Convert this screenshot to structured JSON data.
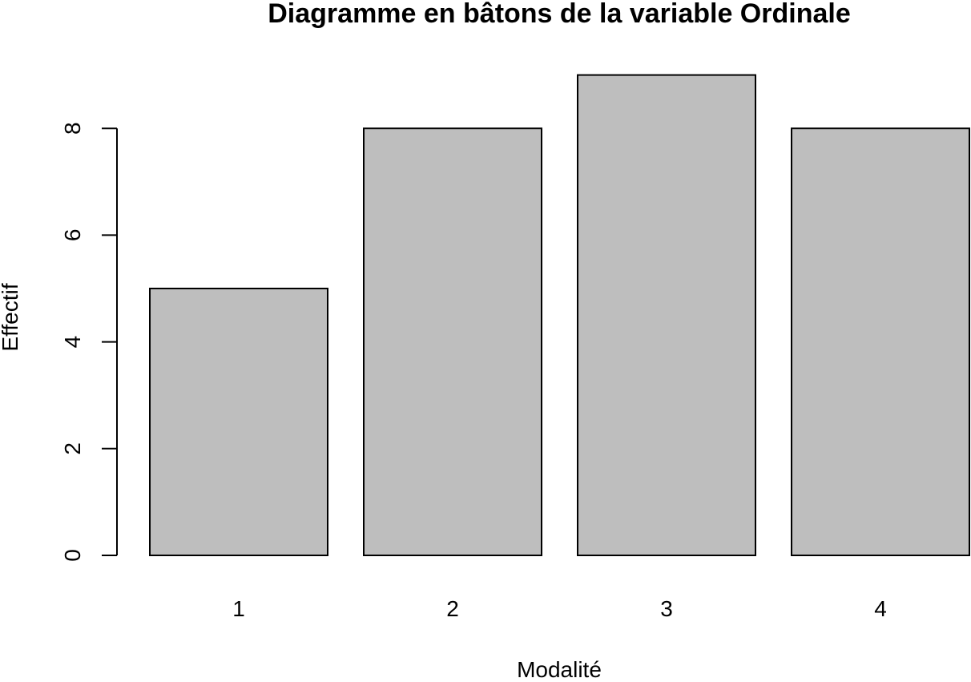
{
  "chart_data": {
    "type": "bar",
    "title": "Diagramme en bâtons de la variable Ordinale",
    "xlabel": "Modalité",
    "ylabel": "Effectif",
    "categories": [
      "1",
      "2",
      "3",
      "4"
    ],
    "values": [
      5,
      8,
      9,
      8
    ],
    "ylim": [
      0,
      9
    ],
    "yticks": [
      "0",
      "2",
      "4",
      "6",
      "8"
    ],
    "grid": false,
    "legend": "none",
    "colors": {
      "bar_fill": "#bebebe",
      "bar_stroke": "#000000",
      "axis": "#000000",
      "background": "#ffffff"
    }
  }
}
